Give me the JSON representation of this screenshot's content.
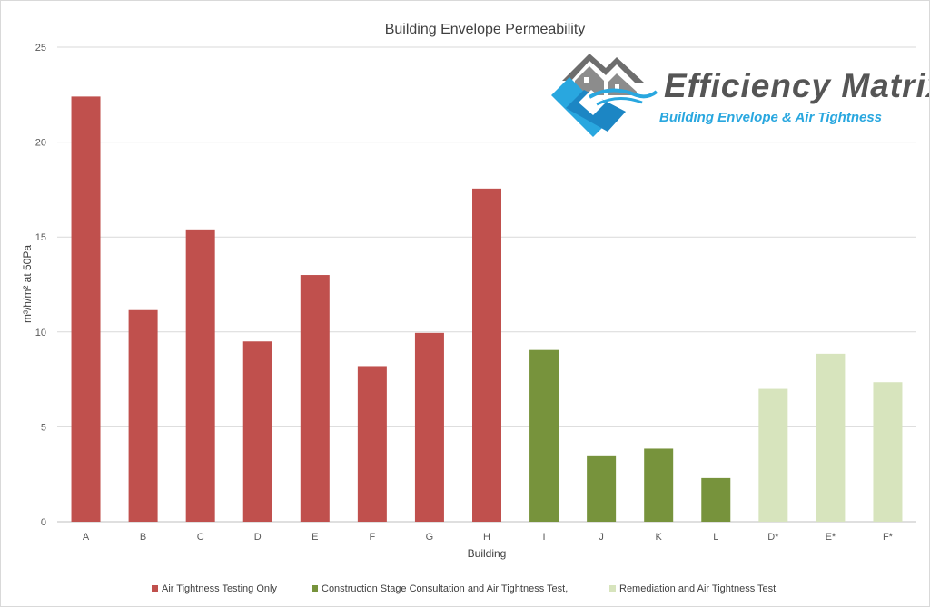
{
  "colors": {
    "series1": "#c0504d",
    "series2": "#77933c",
    "series3": "#d7e4bd",
    "grid": "#d9d9d9",
    "axis": "#bfbfbf",
    "logo_blue": "#29a7df",
    "logo_gray": "#6d6d6d"
  },
  "logo": {
    "title": "Efficiency Matrix",
    "subtitle": "Building Envelope & Air Tightness"
  },
  "chart_data": {
    "type": "bar",
    "title": "Building Envelope Permeability",
    "xlabel": "Building",
    "ylabel": "m³/h/m² at 50Pa",
    "ylim": [
      0,
      25
    ],
    "yticks": [
      0,
      5,
      10,
      15,
      20,
      25
    ],
    "grid": true,
    "legend_position": "bottom",
    "categories": [
      "A",
      "B",
      "C",
      "D",
      "E",
      "F",
      "G",
      "H",
      "I",
      "J",
      "K",
      "L",
      "D*",
      "E*",
      "F*"
    ],
    "series": [
      {
        "name": "Air Tightness Testing Only",
        "color": "#c0504d",
        "values": [
          22.4,
          11.15,
          15.4,
          9.5,
          13.0,
          8.2,
          9.95,
          17.55,
          null,
          null,
          null,
          null,
          null,
          null,
          null
        ]
      },
      {
        "name": "Construction Stage Consultation and Air Tightness Test,",
        "color": "#77933c",
        "values": [
          null,
          null,
          null,
          null,
          null,
          null,
          null,
          null,
          9.05,
          3.45,
          3.85,
          2.3,
          null,
          null,
          null
        ]
      },
      {
        "name": "Remediation and Air Tightness Test",
        "color": "#d7e4bd",
        "values": [
          null,
          null,
          null,
          null,
          null,
          null,
          null,
          null,
          null,
          null,
          null,
          null,
          7.0,
          8.85,
          7.35
        ]
      }
    ]
  }
}
